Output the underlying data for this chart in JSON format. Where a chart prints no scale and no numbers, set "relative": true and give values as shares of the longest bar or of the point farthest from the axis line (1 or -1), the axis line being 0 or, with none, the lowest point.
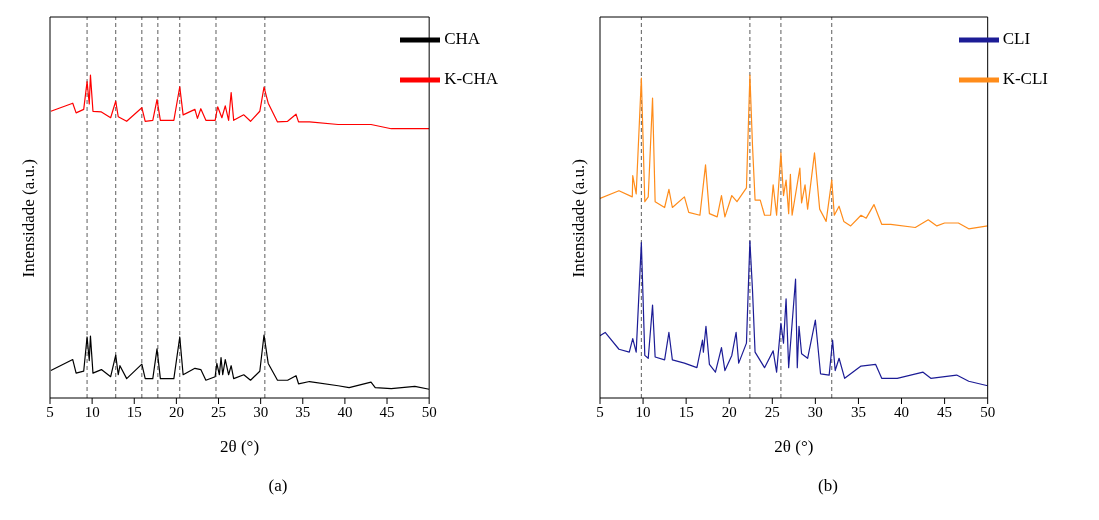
{
  "chart_data": [
    {
      "type": "line",
      "relative": true,
      "xlabel": "2θ (°)",
      "ylabel": "Intensidade (a.u.)",
      "xlim": [
        5,
        50
      ],
      "xticks": [
        5,
        10,
        15,
        20,
        25,
        30,
        35,
        40,
        45,
        50
      ],
      "legend": "top right",
      "grid": false,
      "annotations": [
        "(a)"
      ],
      "series": [
        {
          "name": "CHA",
          "color": "#000000",
          "x": [
            5.1,
            7.7,
            8.1,
            9.0,
            9.4,
            9.66,
            9.8,
            10.1,
            11.1,
            12.2,
            12.8,
            13.1,
            13.3,
            14.1,
            15.9,
            16.3,
            17.2,
            17.7,
            18.1,
            19.7,
            20.4,
            20.8,
            22.2,
            22.9,
            23.5,
            24.6,
            24.8,
            25.1,
            25.3,
            25.5,
            25.8,
            26.2,
            26.5,
            26.8,
            28.0,
            28.8,
            29.9,
            30.4,
            30.9,
            32.0,
            33.2,
            34.2,
            34.5,
            35.8,
            39.2,
            40.5,
            43.1,
            43.6,
            45.5,
            48.3,
            50
          ],
          "values": [
            0.085,
            0.119,
            0.077,
            0.083,
            0.189,
            0.116,
            0.192,
            0.077,
            0.088,
            0.066,
            0.133,
            0.072,
            0.1,
            0.06,
            0.105,
            0.06,
            0.06,
            0.152,
            0.06,
            0.06,
            0.189,
            0.072,
            0.092,
            0.088,
            0.055,
            0.066,
            0.107,
            0.072,
            0.125,
            0.072,
            0.119,
            0.072,
            0.1,
            0.06,
            0.072,
            0.055,
            0.083,
            0.195,
            0.107,
            0.055,
            0.055,
            0.069,
            0.044,
            0.051,
            0.038,
            0.032,
            0.049,
            0.032,
            0.029,
            0.036,
            0.027
          ]
        },
        {
          "name": "K-CHA",
          "color": "#ff0000",
          "x": [
            5.1,
            7.7,
            8.1,
            9.0,
            9.4,
            9.66,
            9.8,
            10.1,
            11.1,
            12.2,
            12.8,
            13.1,
            14.1,
            15.9,
            16.3,
            17.2,
            17.7,
            18.1,
            19.7,
            20.4,
            20.8,
            22.2,
            22.5,
            22.9,
            23.5,
            24.6,
            24.9,
            25.4,
            25.8,
            26.2,
            26.5,
            26.8,
            28.0,
            28.8,
            29.9,
            30.4,
            30.9,
            32.0,
            33.2,
            34.2,
            34.5,
            35.8,
            39.2,
            43.1,
            45.5,
            50
          ],
          "values": [
            0.888,
            0.913,
            0.883,
            0.894,
            0.98,
            0.911,
            1,
            0.888,
            0.886,
            0.868,
            0.919,
            0.871,
            0.857,
            0.899,
            0.857,
            0.86,
            0.924,
            0.86,
            0.86,
            0.964,
            0.877,
            0.894,
            0.866,
            0.896,
            0.86,
            0.86,
            0.902,
            0.868,
            0.905,
            0.86,
            0.946,
            0.86,
            0.877,
            0.857,
            0.888,
            0.963,
            0.913,
            0.855,
            0.857,
            0.879,
            0.855,
            0.855,
            0.847,
            0.847,
            0.834,
            0.834
          ]
        }
      ],
      "ref_lines": [
        {
          "axis": "x",
          "value": 9.4,
          "color": "#333333",
          "line_style": "dashed"
        },
        {
          "axis": "x",
          "value": 12.8,
          "color": "#333333",
          "line_style": "dashed"
        },
        {
          "axis": "x",
          "value": 15.9,
          "color": "#333333",
          "line_style": "dashed"
        },
        {
          "axis": "x",
          "value": 17.8,
          "color": "#333333",
          "line_style": "dashed"
        },
        {
          "axis": "x",
          "value": 20.4,
          "color": "#333333",
          "line_style": "dashed"
        },
        {
          "axis": "x",
          "value": 24.7,
          "color": "#333333",
          "line_style": "dashed"
        },
        {
          "axis": "x",
          "value": 30.5,
          "color": "#333333",
          "line_style": "dashed"
        }
      ]
    },
    {
      "type": "line",
      "relative": true,
      "xlabel": "2θ (°)",
      "ylabel": "Intensidade (a.u.)",
      "xlim": [
        5,
        50
      ],
      "xticks": [
        5,
        10,
        15,
        20,
        25,
        30,
        35,
        40,
        45,
        50
      ],
      "legend": "top right",
      "grid": false,
      "annotations": [
        "(b)"
      ],
      "series": [
        {
          "name": "CLI",
          "color": "#1c1c96",
          "x": [
            5,
            5.6,
            7.2,
            8.4,
            8.8,
            9.2,
            9.8,
            10.2,
            10.6,
            11.1,
            11.4,
            12.5,
            13.0,
            13.4,
            14.8,
            16.25,
            16.9,
            17.0,
            17.3,
            17.7,
            18.4,
            19.1,
            19.5,
            20.3,
            20.8,
            21.1,
            22.0,
            22.4,
            22.7,
            23.0,
            24.1,
            25.1,
            25.5,
            26.0,
            26.3,
            26.6,
            26.9,
            27.7,
            27.9,
            28.1,
            28.4,
            29.1,
            30.0,
            30.6,
            31.6,
            32.0,
            32.3,
            32.75,
            33.4,
            35.3,
            37.0,
            37.7,
            39.5,
            42.5,
            43.4,
            46.4,
            47.8,
            50
          ],
          "values": [
            0.193,
            0.203,
            0.151,
            0.142,
            0.184,
            0.142,
            0.481,
            0.132,
            0.123,
            0.288,
            0.127,
            0.118,
            0.203,
            0.118,
            0.108,
            0.094,
            0.179,
            0.142,
            0.222,
            0.104,
            0.08,
            0.156,
            0.085,
            0.132,
            0.203,
            0.108,
            0.17,
            0.486,
            0.335,
            0.142,
            0.094,
            0.146,
            0.08,
            0.231,
            0.17,
            0.307,
            0.094,
            0.368,
            0.094,
            0.222,
            0.137,
            0.123,
            0.241,
            0.075,
            0.071,
            0.179,
            0.085,
            0.123,
            0.061,
            0.099,
            0.104,
            0.061,
            0.061,
            0.08,
            0.061,
            0.071,
            0.052,
            0.038
          ]
        },
        {
          "name": "K-CLI",
          "color": "#ff8c1a",
          "x": [
            5,
            7.2,
            8.75,
            8.8,
            9.2,
            9.8,
            10.2,
            10.6,
            11.1,
            11.4,
            12.5,
            13.0,
            13.4,
            14.8,
            15.3,
            16.6,
            17.25,
            17.7,
            18.6,
            19.1,
            19.5,
            20.3,
            20.9,
            22.0,
            22.4,
            22.7,
            23.0,
            23.6,
            24.1,
            24.8,
            25.1,
            25.5,
            26.0,
            26.3,
            26.6,
            26.9,
            27.1,
            27.3,
            28.2,
            28.4,
            28.8,
            29.1,
            29.9,
            30.5,
            31.25,
            31.9,
            32.2,
            32.75,
            33.3,
            34.1,
            35.3,
            35.9,
            36.8,
            37.7,
            38.75,
            41.6,
            43.1,
            44.1,
            45.0,
            46.6,
            47.8,
            50
          ],
          "values": [
            0.618,
            0.642,
            0.623,
            0.689,
            0.632,
            0.991,
            0.608,
            0.623,
            0.929,
            0.608,
            0.59,
            0.646,
            0.59,
            0.623,
            0.575,
            0.566,
            0.722,
            0.571,
            0.561,
            0.627,
            0.561,
            0.627,
            0.608,
            0.651,
            1,
            0.783,
            0.613,
            0.613,
            0.566,
            0.566,
            0.66,
            0.566,
            0.759,
            0.627,
            0.675,
            0.571,
            0.693,
            0.566,
            0.712,
            0.604,
            0.66,
            0.585,
            0.759,
            0.585,
            0.547,
            0.675,
            0.566,
            0.594,
            0.547,
            0.533,
            0.566,
            0.557,
            0.599,
            0.538,
            0.538,
            0.528,
            0.552,
            0.533,
            0.542,
            0.542,
            0.524,
            0.533
          ]
        }
      ],
      "ref_lines": [
        {
          "axis": "x",
          "value": 9.8,
          "color": "#333333",
          "line_style": "dashed"
        },
        {
          "axis": "x",
          "value": 22.4,
          "color": "#333333",
          "line_style": "dashed"
        },
        {
          "axis": "x",
          "value": 26.0,
          "color": "#333333",
          "line_style": "dashed"
        },
        {
          "axis": "x",
          "value": 31.9,
          "color": "#333333",
          "line_style": "dashed"
        }
      ]
    }
  ]
}
